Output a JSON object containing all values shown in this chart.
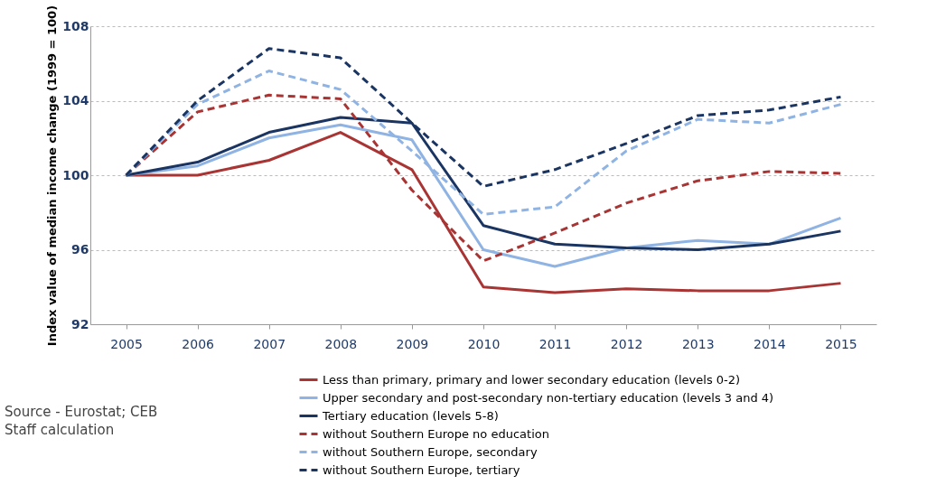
{
  "chart_data": {
    "type": "line",
    "ylabel": "Index value of median income change (1999 = 100)",
    "categories": [
      "2005",
      "2006",
      "2007",
      "2008",
      "2009",
      "2010",
      "2011",
      "2012",
      "2013",
      "2014",
      "2015"
    ],
    "ylim": [
      92,
      108
    ],
    "yticks": [
      92,
      96,
      100,
      104,
      108
    ],
    "grid": "y",
    "legend": "bottom",
    "marker": "none",
    "series": [
      {
        "name": "Less than primary, primary and lower secondary education (levels 0-2)",
        "color": "#a93434",
        "line_style": "solid",
        "values": [
          100,
          100.0,
          100.8,
          102.3,
          100.3,
          94.0,
          93.7,
          93.9,
          93.8,
          93.8,
          94.2
        ]
      },
      {
        "name": "Upper secondary and post-secondary non-tertiary education (levels 3 and 4)",
        "color": "#8fb3e3",
        "line_style": "solid",
        "values": [
          100,
          100.5,
          102.0,
          102.7,
          101.9,
          96.0,
          95.1,
          96.1,
          96.5,
          96.3,
          97.7
        ]
      },
      {
        "name": "Tertiary education (levels 5-8)",
        "color": "#1b3562",
        "line_style": "solid",
        "values": [
          100,
          100.7,
          102.3,
          103.1,
          102.8,
          97.3,
          96.3,
          96.1,
          96.0,
          96.3,
          97.0
        ]
      },
      {
        "name": "without Southern Europe no education",
        "color": "#a93434",
        "line_style": "dashed",
        "values": [
          100,
          103.4,
          104.3,
          104.1,
          99.2,
          95.4,
          96.9,
          98.5,
          99.7,
          100.2,
          100.1
        ]
      },
      {
        "name": "without Southern Europe, secondary",
        "color": "#8fb3e3",
        "line_style": "dashed",
        "values": [
          100,
          103.8,
          105.6,
          104.6,
          101.3,
          97.9,
          98.3,
          101.3,
          103.0,
          102.8,
          103.8
        ]
      },
      {
        "name": "without Southern Europe, tertiary",
        "color": "#1b3562",
        "line_style": "dashed",
        "values": [
          100,
          104.0,
          106.8,
          106.3,
          102.8,
          99.4,
          100.3,
          101.7,
          103.2,
          103.5,
          104.2
        ]
      }
    ],
    "annotations": [
      "Source  - Eurostat; CEB Staff calculation"
    ]
  }
}
